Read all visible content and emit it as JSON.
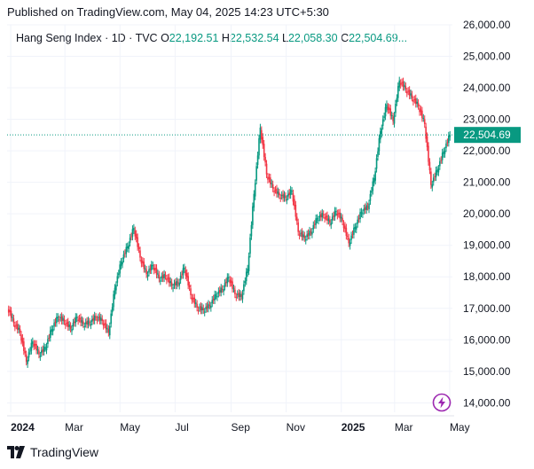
{
  "header": {
    "published": "Published on TradingView.com, May 04, 2025 14:23 UTC+5:30"
  },
  "legend": {
    "symbol": "Hang Seng Index · 1D · TVC",
    "o_label": "O",
    "o_value": "22,192.51",
    "h_label": "H",
    "h_value": "22,532.54",
    "l_label": "L",
    "l_value": "22,058.30",
    "c_label": "C",
    "c_value": "22,504.69",
    "more": "..."
  },
  "footer": {
    "brand": "TradingView"
  },
  "colors": {
    "up": "#089981",
    "down": "#f23645",
    "last_price_bg": "#089981",
    "grid": "#f0f3fa"
  },
  "icons": {
    "logo": "tradingview-logo-icon",
    "bolt": "lightning-bolt-icon"
  },
  "chart_data": {
    "type": "candlestick",
    "title": "Hang Seng Index · 1D · TVC",
    "ylim": [
      13700,
      26000
    ],
    "y_ticks": [
      "26,000.00",
      "25,000.00",
      "24,000.00",
      "23,000.00",
      "22,000.00",
      "21,000.00",
      "20,000.00",
      "19,000.00",
      "18,000.00",
      "17,000.00",
      "16,000.00",
      "15,000.00",
      "14,000.00"
    ],
    "y_tick_values": [
      26000,
      25000,
      24000,
      23000,
      22000,
      21000,
      20000,
      19000,
      18000,
      17000,
      16000,
      15000,
      14000
    ],
    "x_ticks": [
      {
        "label": "2024",
        "bold": true,
        "date": "2024-01-01"
      },
      {
        "label": "Mar",
        "bold": false,
        "date": "2024-03-01"
      },
      {
        "label": "May",
        "bold": false,
        "date": "2024-05-01"
      },
      {
        "label": "Jul",
        "bold": false,
        "date": "2024-07-01"
      },
      {
        "label": "Sep",
        "bold": false,
        "date": "2024-09-01"
      },
      {
        "label": "Nov",
        "bold": false,
        "date": "2024-11-01"
      },
      {
        "label": "2025",
        "bold": true,
        "date": "2025-01-01"
      },
      {
        "label": "Mar",
        "bold": false,
        "date": "2025-03-01"
      },
      {
        "label": "May",
        "bold": false,
        "date": "2025-05-01"
      }
    ],
    "last_price": 22504.69,
    "last_price_label": "22,504.69",
    "grid": true,
    "series": [
      {
        "date": "2023-12-29",
        "close": 17047
      },
      {
        "date": "2024-01-05",
        "close": 16535
      },
      {
        "date": "2024-01-12",
        "close": 16244
      },
      {
        "date": "2024-01-19",
        "close": 15308
      },
      {
        "date": "2024-01-26",
        "close": 15952
      },
      {
        "date": "2024-02-02",
        "close": 15533
      },
      {
        "date": "2024-02-09",
        "close": 15747
      },
      {
        "date": "2024-02-16",
        "close": 16340
      },
      {
        "date": "2024-02-23",
        "close": 16726
      },
      {
        "date": "2024-03-01",
        "close": 16589
      },
      {
        "date": "2024-03-08",
        "close": 16353
      },
      {
        "date": "2024-03-15",
        "close": 16721
      },
      {
        "date": "2024-03-22",
        "close": 16499
      },
      {
        "date": "2024-03-29",
        "close": 16541
      },
      {
        "date": "2024-04-05",
        "close": 16724
      },
      {
        "date": "2024-04-12",
        "close": 16600
      },
      {
        "date": "2024-04-19",
        "close": 16224
      },
      {
        "date": "2024-04-26",
        "close": 17651
      },
      {
        "date": "2024-05-03",
        "close": 18476
      },
      {
        "date": "2024-05-10",
        "close": 18964
      },
      {
        "date": "2024-05-17",
        "close": 19553
      },
      {
        "date": "2024-05-24",
        "close": 18609
      },
      {
        "date": "2024-05-31",
        "close": 18079
      },
      {
        "date": "2024-06-07",
        "close": 18366
      },
      {
        "date": "2024-06-14",
        "close": 17942
      },
      {
        "date": "2024-06-21",
        "close": 18028
      },
      {
        "date": "2024-06-28",
        "close": 17719
      },
      {
        "date": "2024-07-05",
        "close": 17799
      },
      {
        "date": "2024-07-12",
        "close": 18293
      },
      {
        "date": "2024-07-19",
        "close": 17417
      },
      {
        "date": "2024-07-26",
        "close": 17021
      },
      {
        "date": "2024-08-02",
        "close": 16945
      },
      {
        "date": "2024-08-09",
        "close": 17091
      },
      {
        "date": "2024-08-16",
        "close": 17430
      },
      {
        "date": "2024-08-23",
        "close": 17612
      },
      {
        "date": "2024-08-30",
        "close": 17989
      },
      {
        "date": "2024-09-06",
        "close": 17444
      },
      {
        "date": "2024-09-13",
        "close": 17369
      },
      {
        "date": "2024-09-20",
        "close": 18258
      },
      {
        "date": "2024-09-27",
        "close": 20632
      },
      {
        "date": "2024-10-04",
        "close": 22737
      },
      {
        "date": "2024-10-11",
        "close": 21252
      },
      {
        "date": "2024-10-18",
        "close": 20804
      },
      {
        "date": "2024-10-25",
        "close": 20590
      },
      {
        "date": "2024-11-01",
        "close": 20506
      },
      {
        "date": "2024-11-08",
        "close": 20728
      },
      {
        "date": "2024-11-15",
        "close": 19426
      },
      {
        "date": "2024-11-22",
        "close": 19230
      },
      {
        "date": "2024-11-29",
        "close": 19424
      },
      {
        "date": "2024-12-06",
        "close": 19865
      },
      {
        "date": "2024-12-13",
        "close": 19971
      },
      {
        "date": "2024-12-20",
        "close": 19720
      },
      {
        "date": "2024-12-27",
        "close": 20090
      },
      {
        "date": "2025-01-03",
        "close": 19760
      },
      {
        "date": "2025-01-10",
        "close": 19064
      },
      {
        "date": "2025-01-17",
        "close": 19584
      },
      {
        "date": "2025-01-24",
        "close": 20066
      },
      {
        "date": "2025-01-31",
        "close": 20225
      },
      {
        "date": "2025-02-07",
        "close": 21133
      },
      {
        "date": "2025-02-14",
        "close": 22620
      },
      {
        "date": "2025-02-21",
        "close": 23478
      },
      {
        "date": "2025-02-28",
        "close": 22941
      },
      {
        "date": "2025-03-07",
        "close": 24231
      },
      {
        "date": "2025-03-14",
        "close": 23959
      },
      {
        "date": "2025-03-21",
        "close": 23690
      },
      {
        "date": "2025-03-28",
        "close": 23426
      },
      {
        "date": "2025-04-04",
        "close": 22849
      },
      {
        "date": "2025-04-11",
        "close": 20915
      },
      {
        "date": "2025-04-18",
        "close": 21395
      },
      {
        "date": "2025-04-25",
        "close": 21980
      },
      {
        "date": "2025-05-02",
        "close": 22505
      }
    ]
  }
}
